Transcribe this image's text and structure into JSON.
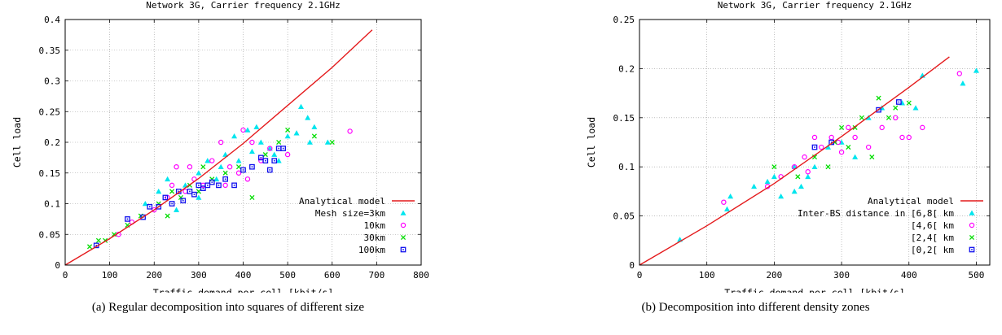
{
  "captions": {
    "a": "(a) Regular decomposition into squares of different size",
    "b": "(b) Decomposition into different density zones"
  },
  "chart_data": [
    {
      "type": "scatter",
      "title": "Network 3G, Carrier frequency 2.1GHz",
      "xlabel": "Traffic demand per cell [kbit/s]",
      "ylabel": "Cell load",
      "xlim": [
        0,
        800
      ],
      "ylim": [
        0,
        0.4
      ],
      "xticks": [
        "0",
        "100",
        "200",
        "300",
        "400",
        "500",
        "600",
        "700",
        "800"
      ],
      "yticks": [
        "0",
        "0.05",
        "0.1",
        "0.15",
        "0.2",
        "0.25",
        "0.3",
        "0.35",
        "0.4"
      ],
      "grid": true,
      "legend_position": "bottom-right",
      "model": {
        "name": "Analytical model",
        "color": "#e41a1c",
        "points": [
          [
            0,
            0
          ],
          [
            100,
            0.043
          ],
          [
            200,
            0.09
          ],
          [
            300,
            0.141
          ],
          [
            400,
            0.198
          ],
          [
            500,
            0.26
          ],
          [
            600,
            0.322
          ],
          [
            690,
            0.383
          ]
        ]
      },
      "series": [
        {
          "name": "Mesh size=3km",
          "marker": "triangle",
          "color": "#00e5ee",
          "points": [
            [
              180,
              0.1
            ],
            [
              210,
              0.12
            ],
            [
              230,
              0.14
            ],
            [
              250,
              0.09
            ],
            [
              270,
              0.13
            ],
            [
              300,
              0.15
            ],
            [
              320,
              0.17
            ],
            [
              350,
              0.16
            ],
            [
              380,
              0.21
            ],
            [
              410,
              0.22
            ],
            [
              420,
              0.185
            ],
            [
              440,
              0.2
            ],
            [
              460,
              0.19
            ],
            [
              480,
              0.17
            ],
            [
              500,
              0.21
            ],
            [
              520,
              0.215
            ],
            [
              530,
              0.258
            ],
            [
              545,
              0.24
            ],
            [
              550,
              0.2
            ],
            [
              560,
              0.225
            ],
            [
              590,
              0.2
            ],
            [
              300,
              0.11
            ],
            [
              340,
              0.14
            ],
            [
              360,
              0.18
            ],
            [
              390,
              0.17
            ],
            [
              430,
              0.225
            ],
            [
              470,
              0.18
            ]
          ]
        },
        {
          "name": "10km",
          "marker": "circle",
          "color": "#ff00ff",
          "points": [
            [
              120,
              0.05
            ],
            [
              150,
              0.07
            ],
            [
              200,
              0.09
            ],
            [
              230,
              0.11
            ],
            [
              250,
              0.16
            ],
            [
              270,
              0.12
            ],
            [
              290,
              0.14
            ],
            [
              310,
              0.13
            ],
            [
              330,
              0.17
            ],
            [
              350,
              0.2
            ],
            [
              370,
              0.16
            ],
            [
              390,
              0.15
            ],
            [
              400,
              0.22
            ],
            [
              420,
              0.2
            ],
            [
              440,
              0.17
            ],
            [
              460,
              0.19
            ],
            [
              500,
              0.18
            ],
            [
              640,
              0.218
            ],
            [
              280,
              0.16
            ],
            [
              240,
              0.13
            ],
            [
              360,
              0.13
            ],
            [
              410,
              0.14
            ]
          ]
        },
        {
          "name": "30km",
          "marker": "cross",
          "color": "#00dd00",
          "points": [
            [
              55,
              0.03
            ],
            [
              75,
              0.04
            ],
            [
              90,
              0.04
            ],
            [
              110,
              0.05
            ],
            [
              140,
              0.065
            ],
            [
              170,
              0.08
            ],
            [
              210,
              0.1
            ],
            [
              240,
              0.12
            ],
            [
              260,
              0.11
            ],
            [
              280,
              0.13
            ],
            [
              300,
              0.12
            ],
            [
              330,
              0.14
            ],
            [
              360,
              0.15
            ],
            [
              390,
              0.16
            ],
            [
              420,
              0.11
            ],
            [
              450,
              0.18
            ],
            [
              480,
              0.2
            ],
            [
              500,
              0.22
            ],
            [
              560,
              0.21
            ],
            [
              600,
              0.2
            ],
            [
              310,
              0.16
            ],
            [
              230,
              0.08
            ]
          ]
        },
        {
          "name": "100km",
          "marker": "square",
          "color": "#1010ee",
          "points": [
            [
              70,
              0.032
            ],
            [
              140,
              0.075
            ],
            [
              175,
              0.078
            ],
            [
              190,
              0.095
            ],
            [
              210,
              0.095
            ],
            [
              225,
              0.11
            ],
            [
              240,
              0.1
            ],
            [
              255,
              0.12
            ],
            [
              265,
              0.105
            ],
            [
              280,
              0.12
            ],
            [
              290,
              0.115
            ],
            [
              300,
              0.13
            ],
            [
              310,
              0.125
            ],
            [
              320,
              0.13
            ],
            [
              330,
              0.135
            ],
            [
              345,
              0.13
            ],
            [
              360,
              0.14
            ],
            [
              380,
              0.13
            ],
            [
              400,
              0.155
            ],
            [
              420,
              0.16
            ],
            [
              440,
              0.175
            ],
            [
              450,
              0.17
            ],
            [
              460,
              0.155
            ],
            [
              470,
              0.17
            ],
            [
              480,
              0.19
            ],
            [
              490,
              0.19
            ]
          ]
        }
      ]
    },
    {
      "type": "scatter",
      "title": "Network 3G, Carrier frequency 2.1GHz",
      "xlabel": "Traffic demand per cell [kbit/s]",
      "ylabel": "Cell load",
      "xlim": [
        0,
        520
      ],
      "ylim": [
        0,
        0.25
      ],
      "xticks": [
        "0",
        "100",
        "200",
        "300",
        "400",
        "500"
      ],
      "yticks": [
        "0",
        "0.05",
        "0.1",
        "0.15",
        "0.2",
        "0.25"
      ],
      "grid": true,
      "legend_position": "bottom-right",
      "model": {
        "name": "Analytical model",
        "color": "#e41a1c",
        "points": [
          [
            0,
            0
          ],
          [
            100,
            0.04
          ],
          [
            200,
            0.083
          ],
          [
            300,
            0.131
          ],
          [
            400,
            0.181
          ],
          [
            460,
            0.212
          ]
        ]
      },
      "series": [
        {
          "name": "Inter-BS distance in [6,8[ km",
          "marker": "triangle",
          "color": "#00e5ee",
          "points": [
            [
              60,
              0.026
            ],
            [
              130,
              0.057
            ],
            [
              135,
              0.07
            ],
            [
              170,
              0.08
            ],
            [
              190,
              0.085
            ],
            [
              200,
              0.09
            ],
            [
              210,
              0.07
            ],
            [
              230,
              0.1
            ],
            [
              240,
              0.08
            ],
            [
              250,
              0.09
            ],
            [
              260,
              0.1
            ],
            [
              280,
              0.12
            ],
            [
              300,
              0.125
            ],
            [
              320,
              0.11
            ],
            [
              340,
              0.15
            ],
            [
              360,
              0.16
            ],
            [
              390,
              0.165
            ],
            [
              410,
              0.16
            ],
            [
              420,
              0.193
            ],
            [
              480,
              0.185
            ],
            [
              500,
              0.198
            ],
            [
              230,
              0.075
            ]
          ]
        },
        {
          "name": "[4,6[ km",
          "marker": "circle",
          "color": "#ff00ff",
          "points": [
            [
              125,
              0.064
            ],
            [
              190,
              0.08
            ],
            [
              210,
              0.09
            ],
            [
              230,
              0.1
            ],
            [
              245,
              0.11
            ],
            [
              260,
              0.13
            ],
            [
              270,
              0.12
            ],
            [
              285,
              0.13
            ],
            [
              295,
              0.125
            ],
            [
              310,
              0.14
            ],
            [
              320,
              0.13
            ],
            [
              340,
              0.12
            ],
            [
              360,
              0.14
            ],
            [
              380,
              0.15
            ],
            [
              390,
              0.13
            ],
            [
              400,
              0.13
            ],
            [
              420,
              0.14
            ],
            [
              475,
              0.195
            ],
            [
              250,
              0.095
            ],
            [
              300,
              0.115
            ]
          ]
        },
        {
          "name": "[2,4[ km",
          "marker": "cross",
          "color": "#00dd00",
          "points": [
            [
              200,
              0.1
            ],
            [
              235,
              0.09
            ],
            [
              260,
              0.11
            ],
            [
              280,
              0.1
            ],
            [
              290,
              0.125
            ],
            [
              300,
              0.14
            ],
            [
              310,
              0.12
            ],
            [
              320,
              0.14
            ],
            [
              330,
              0.15
            ],
            [
              345,
              0.11
            ],
            [
              355,
              0.17
            ],
            [
              370,
              0.15
            ],
            [
              380,
              0.16
            ],
            [
              400,
              0.165
            ]
          ]
        },
        {
          "name": "[0,2[ km",
          "marker": "square",
          "color": "#1010ee",
          "points": [
            [
              260,
              0.12
            ],
            [
              285,
              0.125
            ],
            [
              355,
              0.158
            ],
            [
              385,
              0.166
            ]
          ]
        }
      ]
    }
  ]
}
